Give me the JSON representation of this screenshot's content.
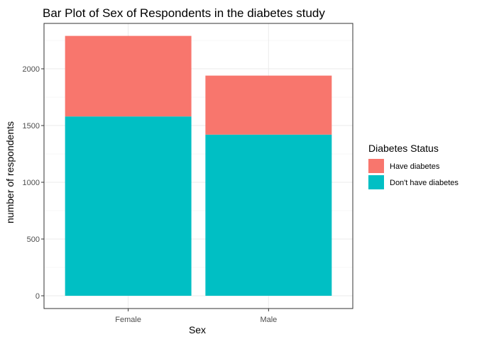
{
  "chart_data": {
    "type": "bar",
    "stacked": true,
    "title": "Bar Plot of Sex of Respondents in the diabetes study",
    "xlabel": "Sex",
    "ylabel": "number of respondents",
    "categories": [
      "Female",
      "Male"
    ],
    "series": [
      {
        "name": "Don't have diabetes",
        "values": [
          1580,
          1420
        ],
        "color": "#00BFC4"
      },
      {
        "name": "Have diabetes",
        "values": [
          710,
          520
        ],
        "color": "#F8766D"
      }
    ],
    "ylim": [
      0,
      2400
    ],
    "yticks": [
      0,
      500,
      1000,
      1500,
      2000
    ],
    "grid": true,
    "legend": {
      "title": "Diabetes Status",
      "position": "right",
      "entries": [
        "Have diabetes",
        "Don't have diabetes"
      ]
    }
  }
}
